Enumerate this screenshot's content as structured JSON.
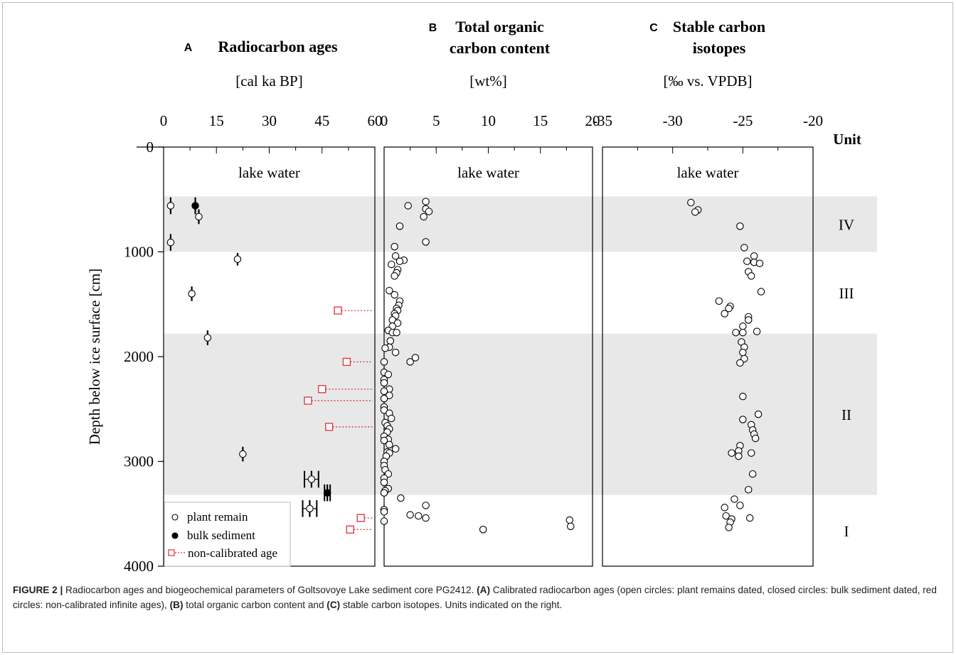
{
  "chart_data": [
    {
      "panel": "A",
      "type": "scatter",
      "title": "Radiocarbon ages",
      "unit": "[cal ka BP]",
      "xlim": [
        0,
        60
      ],
      "xticks": [
        0,
        15,
        30,
        45,
        60
      ],
      "xtick_labels": [
        "0",
        "15",
        "30",
        "45",
        "60"
      ],
      "ylim": [
        0,
        4000
      ],
      "yticks": [
        0,
        1000,
        2000,
        3000,
        4000
      ],
      "ylabel": "Depth below ice surface [cm]",
      "region_label": "lake water",
      "series": [
        {
          "name": "plant remain",
          "marker": "open-circle",
          "points": [
            {
              "x": 2,
              "y": 560,
              "xerr": 0,
              "yerr": 80
            },
            {
              "x": 10,
              "y": 665,
              "xerr": 0,
              "yerr": 70
            },
            {
              "x": 2,
              "y": 910,
              "xerr": 0,
              "yerr": 80
            },
            {
              "x": 21,
              "y": 1070,
              "xerr": 0,
              "yerr": 60
            },
            {
              "x": 8,
              "y": 1400,
              "xerr": 0,
              "yerr": 70
            },
            {
              "x": 12.5,
              "y": 1820,
              "xerr": 0,
              "yerr": 70
            },
            {
              "x": 22.5,
              "y": 2930,
              "xerr": 0,
              "yerr": 70
            },
            {
              "x": 42,
              "y": 3170,
              "xerr": 2,
              "yerr": 80
            },
            {
              "x": 41.5,
              "y": 3450,
              "xerr": 2,
              "yerr": 80
            }
          ]
        },
        {
          "name": "bulk sediment",
          "marker": "filled-circle",
          "points": [
            {
              "x": 9,
              "y": 560,
              "xerr": 0,
              "yerr": 80
            },
            {
              "x": 46.5,
              "y": 3300,
              "xerr": 0.8,
              "yerr": 80
            }
          ]
        },
        {
          "name": "non-calibrated age",
          "marker": "open-square",
          "points": [
            {
              "x": 49.5,
              "y": 1560
            },
            {
              "x": 52,
              "y": 2050
            },
            {
              "x": 45,
              "y": 2310
            },
            {
              "x": 41,
              "y": 2420
            },
            {
              "x": 47,
              "y": 2670
            },
            {
              "x": 56,
              "y": 3540
            },
            {
              "x": 53,
              "y": 3650
            }
          ]
        }
      ],
      "legend": {
        "placement": "bottom-left",
        "entries": [
          "plant remain",
          "bulk sediment",
          "non-calibrated age"
        ]
      }
    },
    {
      "panel": "B",
      "type": "scatter",
      "title": "Total organic carbon content",
      "title_lines": [
        "Total organic",
        "carbon content"
      ],
      "unit": "[wt%]",
      "xlim": [
        0,
        20
      ],
      "xticks": [
        0,
        5,
        10,
        15,
        20
      ],
      "xtick_labels": [
        "0",
        "5",
        "10",
        "15",
        "20"
      ],
      "region_label": "lake water",
      "series": [
        {
          "name": "TOC",
          "marker": "open-circle",
          "points": [
            {
              "x": 4,
              "y": 520
            },
            {
              "x": 2.3,
              "y": 560
            },
            {
              "x": 4,
              "y": 590
            },
            {
              "x": 4.3,
              "y": 615
            },
            {
              "x": 3.8,
              "y": 665
            },
            {
              "x": 1.5,
              "y": 755
            },
            {
              "x": 4,
              "y": 905
            },
            {
              "x": 1,
              "y": 950
            },
            {
              "x": 1.1,
              "y": 1040
            },
            {
              "x": 1.9,
              "y": 1080
            },
            {
              "x": 1.5,
              "y": 1090
            },
            {
              "x": 0.7,
              "y": 1120
            },
            {
              "x": 1.3,
              "y": 1170
            },
            {
              "x": 1.2,
              "y": 1200
            },
            {
              "x": 1,
              "y": 1230
            },
            {
              "x": 0.5,
              "y": 1370
            },
            {
              "x": 1,
              "y": 1410
            },
            {
              "x": 1.5,
              "y": 1470
            },
            {
              "x": 1.4,
              "y": 1510
            },
            {
              "x": 1.2,
              "y": 1540
            },
            {
              "x": 1.3,
              "y": 1560
            },
            {
              "x": 1,
              "y": 1590
            },
            {
              "x": 1.1,
              "y": 1610
            },
            {
              "x": 0.8,
              "y": 1650
            },
            {
              "x": 1.3,
              "y": 1680
            },
            {
              "x": 0.8,
              "y": 1710
            },
            {
              "x": 0.4,
              "y": 1750
            },
            {
              "x": 0.8,
              "y": 1770
            },
            {
              "x": 1.2,
              "y": 1770
            },
            {
              "x": 0.6,
              "y": 1850
            },
            {
              "x": 0.5,
              "y": 1910
            },
            {
              "x": 0.1,
              "y": 1920
            },
            {
              "x": 1.1,
              "y": 1960
            },
            {
              "x": 3,
              "y": 2010
            },
            {
              "x": 2.5,
              "y": 2050
            },
            {
              "x": 0,
              "y": 2050
            },
            {
              "x": 0,
              "y": 2150
            },
            {
              "x": 0.4,
              "y": 2170
            },
            {
              "x": 0,
              "y": 2220
            },
            {
              "x": 0,
              "y": 2250
            },
            {
              "x": 0.5,
              "y": 2310
            },
            {
              "x": 0,
              "y": 2330
            },
            {
              "x": 0.5,
              "y": 2370
            },
            {
              "x": 0,
              "y": 2400
            },
            {
              "x": 0,
              "y": 2480
            },
            {
              "x": 0,
              "y": 2510
            },
            {
              "x": 0.5,
              "y": 2540
            },
            {
              "x": 0.7,
              "y": 2590
            },
            {
              "x": 0.1,
              "y": 2630
            },
            {
              "x": 0.3,
              "y": 2660
            },
            {
              "x": 0.5,
              "y": 2690
            },
            {
              "x": 0.3,
              "y": 2720
            },
            {
              "x": 0,
              "y": 2760
            },
            {
              "x": 0.4,
              "y": 2790
            },
            {
              "x": 0,
              "y": 2800
            },
            {
              "x": 0.5,
              "y": 2840
            },
            {
              "x": 1.1,
              "y": 2880
            },
            {
              "x": 0.3,
              "y": 2910
            },
            {
              "x": 0.5,
              "y": 2920
            },
            {
              "x": 0.2,
              "y": 2950
            },
            {
              "x": 0,
              "y": 3000
            },
            {
              "x": 0,
              "y": 3040
            },
            {
              "x": 0.1,
              "y": 3080
            },
            {
              "x": 0.4,
              "y": 3120
            },
            {
              "x": 0,
              "y": 3160
            },
            {
              "x": 0,
              "y": 3200
            },
            {
              "x": 0.4,
              "y": 3260
            },
            {
              "x": 0.1,
              "y": 3280
            },
            {
              "x": 0,
              "y": 3300
            },
            {
              "x": 1.6,
              "y": 3350
            },
            {
              "x": 4,
              "y": 3420
            },
            {
              "x": 0,
              "y": 3460
            },
            {
              "x": 0,
              "y": 3480
            },
            {
              "x": 2.5,
              "y": 3510
            },
            {
              "x": 3.3,
              "y": 3520
            },
            {
              "x": 4,
              "y": 3540
            },
            {
              "x": 0,
              "y": 3570
            },
            {
              "x": 17.8,
              "y": 3560
            },
            {
              "x": 17.9,
              "y": 3620
            },
            {
              "x": 9.5,
              "y": 3650
            }
          ]
        }
      ]
    },
    {
      "panel": "C",
      "type": "scatter",
      "title": "Stable carbon isotopes",
      "title_lines": [
        "Stable carbon",
        "isotopes"
      ],
      "unit": "[‰ vs. VPDB]",
      "xlim": [
        -35,
        -20
      ],
      "xticks": [
        -35,
        -30,
        -25,
        -20
      ],
      "xtick_labels": [
        "-35",
        "-30",
        "-25",
        "-20"
      ],
      "region_label": "lake water",
      "series": [
        {
          "name": "δ13C",
          "marker": "open-circle",
          "points": [
            {
              "x": -28.7,
              "y": 530
            },
            {
              "x": -28.2,
              "y": 600
            },
            {
              "x": -28.4,
              "y": 620
            },
            {
              "x": -25.2,
              "y": 755
            },
            {
              "x": -24.9,
              "y": 960
            },
            {
              "x": -24.2,
              "y": 1040
            },
            {
              "x": -24.7,
              "y": 1090
            },
            {
              "x": -24.2,
              "y": 1100
            },
            {
              "x": -23.8,
              "y": 1110
            },
            {
              "x": -24.6,
              "y": 1190
            },
            {
              "x": -24.4,
              "y": 1230
            },
            {
              "x": -23.7,
              "y": 1380
            },
            {
              "x": -26.7,
              "y": 1470
            },
            {
              "x": -25.9,
              "y": 1520
            },
            {
              "x": -26,
              "y": 1540
            },
            {
              "x": -26.3,
              "y": 1590
            },
            {
              "x": -24.6,
              "y": 1620
            },
            {
              "x": -24.6,
              "y": 1650
            },
            {
              "x": -25,
              "y": 1710
            },
            {
              "x": -25.5,
              "y": 1770
            },
            {
              "x": -25,
              "y": 1770
            },
            {
              "x": -24,
              "y": 1760
            },
            {
              "x": -25.1,
              "y": 1860
            },
            {
              "x": -24.9,
              "y": 1910
            },
            {
              "x": -25,
              "y": 1960
            },
            {
              "x": -24.9,
              "y": 2020
            },
            {
              "x": -25.2,
              "y": 2060
            },
            {
              "x": -25,
              "y": 2380
            },
            {
              "x": -23.9,
              "y": 2550
            },
            {
              "x": -25,
              "y": 2600
            },
            {
              "x": -24.4,
              "y": 2650
            },
            {
              "x": -24.3,
              "y": 2700
            },
            {
              "x": -24.2,
              "y": 2740
            },
            {
              "x": -24.1,
              "y": 2780
            },
            {
              "x": -25.2,
              "y": 2850
            },
            {
              "x": -25.3,
              "y": 2900
            },
            {
              "x": -25.8,
              "y": 2920
            },
            {
              "x": -24.4,
              "y": 2920
            },
            {
              "x": -25.3,
              "y": 2950
            },
            {
              "x": -24.3,
              "y": 3120
            },
            {
              "x": -24.6,
              "y": 3270
            },
            {
              "x": -25.6,
              "y": 3360
            },
            {
              "x": -25.2,
              "y": 3420
            },
            {
              "x": -26.3,
              "y": 3440
            },
            {
              "x": -26.2,
              "y": 3520
            },
            {
              "x": -24.5,
              "y": 3540
            },
            {
              "x": -25.8,
              "y": 3550
            },
            {
              "x": -25.9,
              "y": 3580
            },
            {
              "x": -26,
              "y": 3630
            }
          ]
        }
      ]
    }
  ],
  "units": {
    "header": "Unit",
    "shading_color": "#e8e8e8",
    "bands": [
      {
        "label": "IV",
        "y_from": 470,
        "y_to": 1000,
        "shaded": true
      },
      {
        "label": "III",
        "y_from": 1000,
        "y_to": 1780,
        "shaded": false
      },
      {
        "label": "II",
        "y_from": 1780,
        "y_to": 3320,
        "shaded": true
      },
      {
        "label": "I",
        "y_from": 3320,
        "y_to": 4000,
        "shaded": false
      }
    ]
  },
  "colors": {
    "non_calibrated": "#e0303a",
    "marker": "#000000",
    "shading": "#e8e8e8"
  },
  "caption": {
    "figure": "FIGURE 2 |",
    "intro": " Radiocarbon ages and biogeochemical parameters of Goltsovoye Lake sediment core PG2412. ",
    "a_label": "(A)",
    "a_text": " Calibrated radiocarbon ages (open circles: plant remains dated, closed circles: bulk sediment dated, red circles: non-calibrated infinite ages), ",
    "b_label": "(B)",
    "b_text": " total organic carbon content and ",
    "c_label": "(C)",
    "c_text": " stable carbon isotopes. Units indicated on the right."
  }
}
